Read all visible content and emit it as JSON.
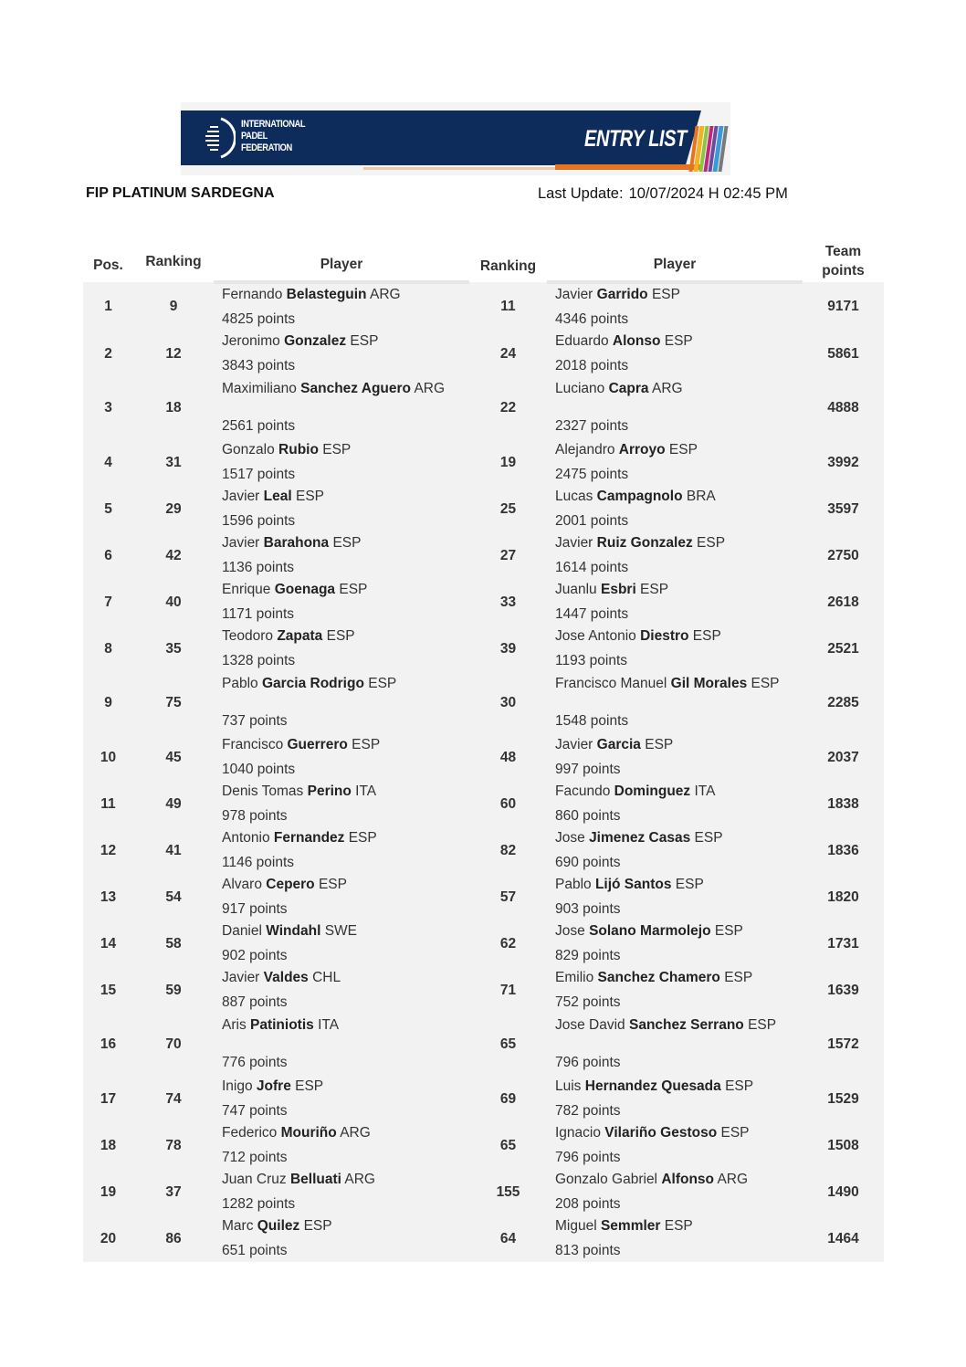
{
  "banner": {
    "org_line1": "INTERNATIONAL",
    "org_line2": "PADEL",
    "org_line3": "FEDERATION",
    "title": "ENTRY LIST",
    "colors": {
      "navy": "#0d2c5c",
      "orange": "#e8731f"
    }
  },
  "event_name": "FIP PLATINUM SARDEGNA",
  "last_update": {
    "label": "Last Update:",
    "value": "10/07/2024 H 02:45 PM"
  },
  "table": {
    "headers": {
      "pos": "Pos.",
      "ranking1": "Ranking",
      "player1": "Player",
      "ranking2": "Ranking",
      "player2": "Player",
      "team_points": [
        "Team",
        "points"
      ]
    },
    "rows": [
      {
        "pos": "1",
        "r1": "9",
        "p1": [
          "Fernando ",
          "Belasteguin",
          " ARG"
        ],
        "pts1": "4825 points",
        "r2": "11",
        "p2": [
          "Javier ",
          "Garrido",
          " ESP"
        ],
        "pts2": "4346 points",
        "team": "9171"
      },
      {
        "pos": "2",
        "r1": "12",
        "p1": [
          "Jeronimo ",
          "Gonzalez",
          " ESP"
        ],
        "pts1": "3843 points",
        "r2": "24",
        "p2": [
          "Eduardo ",
          "Alonso",
          " ESP"
        ],
        "pts2": "2018 points",
        "team": "5861"
      },
      {
        "pos": "3",
        "r1": "18",
        "p1": [
          "Maximiliano ",
          "Sanchez Aguero",
          " ARG"
        ],
        "pts1": "2561 points",
        "r2": "22",
        "p2": [
          "Luciano ",
          "Capra",
          " ARG"
        ],
        "pts2": "2327 points",
        "team": "4888",
        "tall": true
      },
      {
        "pos": "4",
        "r1": "31",
        "p1": [
          "Gonzalo ",
          "Rubio",
          " ESP"
        ],
        "pts1": "1517 points",
        "r2": "19",
        "p2": [
          "Alejandro ",
          "Arroyo",
          " ESP"
        ],
        "pts2": "2475 points",
        "team": "3992"
      },
      {
        "pos": "5",
        "r1": "29",
        "p1": [
          "Javier ",
          "Leal",
          " ESP"
        ],
        "pts1": "1596 points",
        "r2": "25",
        "p2": [
          "Lucas ",
          "Campagnolo",
          " BRA"
        ],
        "pts2": "2001 points",
        "team": "3597"
      },
      {
        "pos": "6",
        "r1": "42",
        "p1": [
          "Javier ",
          "Barahona",
          " ESP"
        ],
        "pts1": "1136 points",
        "r2": "27",
        "p2": [
          "Javier ",
          "Ruiz Gonzalez",
          " ESP"
        ],
        "pts2": "1614 points",
        "team": "2750"
      },
      {
        "pos": "7",
        "r1": "40",
        "p1": [
          "Enrique ",
          "Goenaga",
          " ESP"
        ],
        "pts1": "1171 points",
        "r2": "33",
        "p2": [
          "Juanlu ",
          "Esbri",
          " ESP"
        ],
        "pts2": "1447 points",
        "team": "2618"
      },
      {
        "pos": "8",
        "r1": "35",
        "p1": [
          "Teodoro ",
          "Zapata",
          " ESP"
        ],
        "pts1": "1328 points",
        "r2": "39",
        "p2": [
          "Jose Antonio ",
          "Diestro",
          " ESP"
        ],
        "pts2": "1193 points",
        "team": "2521"
      },
      {
        "pos": "9",
        "r1": "75",
        "p1": [
          "Pablo ",
          "Garcia Rodrigo",
          " ESP"
        ],
        "pts1": "737 points",
        "r2": "30",
        "p2": [
          "Francisco Manuel ",
          "Gil Morales",
          " ESP"
        ],
        "pts2": "1548 points",
        "team": "2285",
        "tall": true
      },
      {
        "pos": "10",
        "r1": "45",
        "p1": [
          "Francisco ",
          "Guerrero",
          " ESP"
        ],
        "pts1": "1040 points",
        "r2": "48",
        "p2": [
          "Javier ",
          "Garcia",
          " ESP"
        ],
        "pts2": "997 points",
        "team": "2037"
      },
      {
        "pos": "11",
        "r1": "49",
        "p1": [
          "Denis Tomas ",
          "Perino",
          " ITA"
        ],
        "pts1": "978 points",
        "r2": "60",
        "p2": [
          "Facundo ",
          "Dominguez",
          " ITA"
        ],
        "pts2": "860 points",
        "team": "1838"
      },
      {
        "pos": "12",
        "r1": "41",
        "p1": [
          "Antonio ",
          "Fernandez",
          " ESP"
        ],
        "pts1": "1146 points",
        "r2": "82",
        "p2": [
          "Jose ",
          "Jimenez Casas",
          " ESP"
        ],
        "pts2": "690 points",
        "team": "1836"
      },
      {
        "pos": "13",
        "r1": "54",
        "p1": [
          "Alvaro ",
          "Cepero",
          " ESP"
        ],
        "pts1": "917 points",
        "r2": "57",
        "p2": [
          "Pablo ",
          "Lijó Santos",
          " ESP"
        ],
        "pts2": "903 points",
        "team": "1820"
      },
      {
        "pos": "14",
        "r1": "58",
        "p1": [
          "Daniel ",
          "Windahl",
          " SWE"
        ],
        "pts1": "902 points",
        "r2": "62",
        "p2": [
          "Jose ",
          "Solano Marmolejo",
          " ESP"
        ],
        "pts2": "829 points",
        "team": "1731"
      },
      {
        "pos": "15",
        "r1": "59",
        "p1": [
          "Javier ",
          "Valdes",
          " CHL"
        ],
        "pts1": "887 points",
        "r2": "71",
        "p2": [
          "Emilio ",
          "Sanchez Chamero",
          " ESP"
        ],
        "pts2": "752 points",
        "team": "1639"
      },
      {
        "pos": "16",
        "r1": "70",
        "p1": [
          "Aris ",
          "Patiniotis",
          " ITA"
        ],
        "pts1": "776 points",
        "r2": "65",
        "p2": [
          "Jose David ",
          "Sanchez Serrano",
          " ESP"
        ],
        "pts2": "796 points",
        "team": "1572",
        "tall": true
      },
      {
        "pos": "17",
        "r1": "74",
        "p1": [
          "Inigo ",
          "Jofre",
          " ESP"
        ],
        "pts1": "747 points",
        "r2": "69",
        "p2": [
          "Luis ",
          "Hernandez Quesada",
          " ESP"
        ],
        "pts2": "782 points",
        "team": "1529"
      },
      {
        "pos": "18",
        "r1": "78",
        "p1": [
          "Federico ",
          "Mouriño",
          " ARG"
        ],
        "pts1": "712 points",
        "r2": "65",
        "p2": [
          "Ignacio ",
          "Vilariño Gestoso",
          " ESP"
        ],
        "pts2": "796 points",
        "team": "1508"
      },
      {
        "pos": "19",
        "r1": "37",
        "p1": [
          "Juan Cruz ",
          "Belluati",
          " ARG"
        ],
        "pts1": "1282 points",
        "r2": "155",
        "p2": [
          "Gonzalo Gabriel ",
          "Alfonso",
          " ARG"
        ],
        "pts2": "208 points",
        "team": "1490"
      },
      {
        "pos": "20",
        "r1": "86",
        "p1": [
          "Marc ",
          "Quilez",
          " ESP"
        ],
        "pts1": "651 points",
        "r2": "64",
        "p2": [
          "Miguel ",
          "Semmler",
          " ESP"
        ],
        "pts2": "813 points",
        "team": "1464"
      }
    ]
  }
}
